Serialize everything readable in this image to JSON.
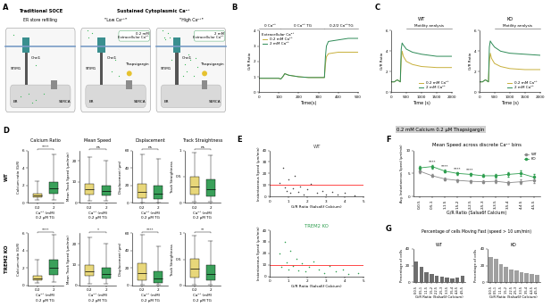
{
  "panel_letters": [
    "A",
    "B",
    "C",
    "D",
    "E",
    "F",
    "G"
  ],
  "diagram": {
    "group_title": "Sustained Cytoplasmic Ca²⁺",
    "labels": {
      "orai": "Orai1",
      "stim": "STIM1",
      "serca": "SERCA",
      "er": "ER"
    },
    "boxes": [
      {
        "title": "Traditional SOCE",
        "subtitle": "ER store refilling"
      },
      {
        "subtitle": "\"Low Ca²⁺\"",
        "extracellular": "0.2 mM\nExtracellular Ca²⁺",
        "drug": "Thapsigargin"
      },
      {
        "subtitle": "\"High Ca²⁺\"",
        "extracellular": "2 mM\nExtracellular Ca²⁺",
        "drug": "Thapsigargin"
      }
    ]
  },
  "header": "0.2 mM Calcium 0.2 µM Thapsigargin",
  "row_labels": [
    "WT",
    "TREM2 KO"
  ],
  "group_title_G": "Percentage of cells Moving Fast (speed > 10 um/min)",
  "chart_data": [
    {
      "type": "line",
      "xlabel": "Time(s)",
      "ylabel": "G/R Ratio",
      "x": [
        0,
        50,
        100,
        110,
        120,
        130,
        140,
        150,
        200,
        250,
        300,
        330,
        335,
        340,
        350,
        400,
        450,
        500
      ],
      "xlim": [
        0,
        500
      ],
      "xticks": [
        0,
        100,
        200,
        300,
        400,
        500
      ],
      "ylim": [
        0,
        4
      ],
      "yticks": [
        0,
        1,
        2,
        3,
        4
      ],
      "phases": [
        {
          "label": "0 Ca²⁺",
          "start": 0,
          "end": 110
        },
        {
          "label": "0 Ca²⁺ TG",
          "start": 110,
          "end": 330
        },
        {
          "label": "0.2/2 Ca²⁺TG",
          "start": 330,
          "end": 500
        }
      ],
      "legend": "upper left",
      "legend_title": "Extracellular Ca²⁺",
      "series": [
        {
          "name": "0.2 mM Ca²⁺",
          "color": "#c8b03c",
          "values": [
            0.9,
            0.9,
            0.9,
            0.85,
            1.0,
            1.2,
            1.15,
            1.1,
            1.0,
            0.95,
            0.95,
            0.95,
            1.8,
            2.3,
            2.5,
            2.6,
            2.6,
            2.6
          ]
        },
        {
          "name": "2 mM Ca²⁺",
          "color": "#2e8b57",
          "values": [
            0.9,
            0.9,
            0.9,
            0.85,
            1.0,
            1.2,
            1.15,
            1.1,
            1.0,
            0.95,
            0.95,
            0.95,
            2.3,
            3.0,
            3.3,
            3.4,
            3.5,
            3.5
          ]
        }
      ]
    },
    {
      "type": "line",
      "title": "WT",
      "xlabel": "Time (s)",
      "ylabel": "G/R Ratio",
      "x": [
        0,
        100,
        200,
        300,
        330,
        360,
        400,
        500,
        700,
        1000,
        1500,
        2000
      ],
      "xlim": [
        0,
        2000
      ],
      "xticks": [
        0,
        500,
        1000,
        1500,
        2000
      ],
      "ylim": [
        0,
        6
      ],
      "yticks": [
        0,
        2,
        4,
        6
      ],
      "phases": [
        {
          "label": "Motility analysis",
          "start": 500,
          "end": 2000
        }
      ],
      "legend": "lower right",
      "series": [
        {
          "name": "0.2 mM Ca²⁺",
          "color": "#c8b03c",
          "values": [
            1.0,
            1.0,
            1.2,
            1.0,
            3.2,
            4.0,
            3.5,
            3.0,
            2.7,
            2.5,
            2.4,
            2.4
          ]
        },
        {
          "name": "2 mM Ca²⁺",
          "color": "#2e8b57",
          "values": [
            1.0,
            1.0,
            1.2,
            1.0,
            4.2,
            4.8,
            4.6,
            4.2,
            3.9,
            3.7,
            3.5,
            3.5
          ]
        }
      ]
    },
    {
      "type": "line",
      "title": "KO",
      "xlabel": "Time (s)",
      "ylabel": "G/R Ratio",
      "x": [
        0,
        100,
        200,
        300,
        330,
        360,
        400,
        500,
        700,
        1000,
        1500,
        2000
      ],
      "xlim": [
        0,
        2000
      ],
      "xticks": [
        0,
        500,
        1000,
        1500,
        2000
      ],
      "ylim": [
        0,
        6
      ],
      "yticks": [
        0,
        2,
        4,
        6
      ],
      "phases": [
        {
          "label": "Motility analysis",
          "start": 500,
          "end": 2000
        }
      ],
      "legend": "lower right",
      "series": [
        {
          "name": "0.2 mM Ca²⁺",
          "color": "#c8b03c",
          "values": [
            1.0,
            1.0,
            1.2,
            1.0,
            3.0,
            3.8,
            3.3,
            2.8,
            2.5,
            2.3,
            2.2,
            2.2
          ]
        },
        {
          "name": "2 mM Ca²⁺",
          "color": "#2e8b57",
          "values": [
            1.0,
            1.0,
            1.2,
            1.0,
            4.4,
            5.0,
            4.8,
            4.4,
            4.0,
            3.8,
            3.7,
            3.6
          ]
        }
      ]
    },
    {
      "type": "box",
      "title": "Calcium Ratio",
      "ylabel": "Calcium ratio (G/R)",
      "xlabel": "Ca²⁺ (mM)",
      "annotation": "0.2 µM TG",
      "categories": [
        "0.2",
        "2"
      ],
      "colors": [
        "#e8d77a",
        "#3aa05a"
      ],
      "ylim": [
        0,
        6
      ],
      "yticks": [
        0,
        2,
        4,
        6
      ],
      "significance": "****",
      "stats": [
        {
          "q1": 0.6,
          "median": 0.8,
          "q3": 1.0,
          "min": 0.3,
          "max": 2.5
        },
        {
          "q1": 1.0,
          "median": 1.6,
          "q3": 2.4,
          "min": 0.3,
          "max": 5.5
        }
      ]
    },
    {
      "type": "box",
      "title": "Mean Speed",
      "ylabel": "Mean Track Speed (µm/min)",
      "xlabel": "Ca²⁺ (mM)",
      "annotation": "0.2 µM TG",
      "categories": [
        "0.2",
        "2"
      ],
      "colors": [
        "#e8d77a",
        "#3aa05a"
      ],
      "ylim": [
        0,
        25
      ],
      "yticks": [
        0,
        10,
        20
      ],
      "significance": "ns",
      "stats": [
        {
          "q1": 4,
          "median": 6.5,
          "q3": 9,
          "min": 1,
          "max": 22
        },
        {
          "q1": 3.5,
          "median": 5.5,
          "q3": 8,
          "min": 1,
          "max": 20
        }
      ]
    },
    {
      "type": "box",
      "title": "Displacement",
      "ylabel": "Displacement (µm)",
      "xlabel": "Ca²⁺ (mM)",
      "annotation": "0.2 µM TG",
      "categories": [
        "0.2",
        "2"
      ],
      "colors": [
        "#e8d77a",
        "#3aa05a"
      ],
      "ylim": [
        0,
        60
      ],
      "yticks": [
        0,
        20,
        40,
        60
      ],
      "significance": "ns",
      "stats": [
        {
          "q1": 5,
          "median": 12,
          "q3": 22,
          "min": 0.5,
          "max": 55
        },
        {
          "q1": 4,
          "median": 10,
          "q3": 20,
          "min": 0.5,
          "max": 50
        }
      ]
    },
    {
      "type": "box",
      "title": "Track Straightness",
      "ylabel": "Track Straightness",
      "xlabel": "Ca²⁺ (mM)",
      "annotation": "0.2 µM TG",
      "categories": [
        "0.2",
        "2"
      ],
      "colors": [
        "#e8d77a",
        "#3aa05a"
      ],
      "ylim": [
        0,
        1
      ],
      "yticks": [
        0,
        0.5,
        1
      ],
      "significance": "ns",
      "stats": [
        {
          "q1": 0.15,
          "median": 0.3,
          "q3": 0.5,
          "min": 0.02,
          "max": 0.95
        },
        {
          "q1": 0.12,
          "median": 0.25,
          "q3": 0.45,
          "min": 0.02,
          "max": 0.9
        }
      ]
    },
    {
      "type": "box",
      "ylabel": "Calcium ratio (G/R)",
      "xlabel": "Ca²⁺ (mM)",
      "annotation": "0.2 µM TG",
      "categories": [
        "0.2",
        "2"
      ],
      "colors": [
        "#e8d77a",
        "#3aa05a"
      ],
      "ylim": [
        0,
        6
      ],
      "yticks": [
        0,
        2,
        4,
        6
      ],
      "significance": "****",
      "stats": [
        {
          "q1": 0.6,
          "median": 0.8,
          "q3": 1.1,
          "min": 0.3,
          "max": 3.0
        },
        {
          "q1": 1.2,
          "median": 2.0,
          "q3": 3.0,
          "min": 0.4,
          "max": 5.8
        }
      ]
    },
    {
      "type": "box",
      "ylabel": "Mean Track Speed (µm/min)",
      "xlabel": "Ca²⁺ (mM)",
      "annotation": "0.2 µM TG",
      "categories": [
        "0.2",
        "2"
      ],
      "colors": [
        "#e8d77a",
        "#3aa05a"
      ],
      "ylim": [
        0,
        25
      ],
      "yticks": [
        0,
        10,
        20
      ],
      "significance": "*",
      "stats": [
        {
          "q1": 4.5,
          "median": 7,
          "q3": 10,
          "min": 1,
          "max": 23
        },
        {
          "q1": 3.5,
          "median": 5.5,
          "q3": 8.5,
          "min": 1,
          "max": 20
        }
      ]
    },
    {
      "type": "box",
      "ylabel": "Displacement (µm)",
      "xlabel": "Ca²⁺ (mM)",
      "annotation": "0.2 µM TG",
      "categories": [
        "0.2",
        "2"
      ],
      "colors": [
        "#e8d77a",
        "#3aa05a"
      ],
      "ylim": [
        0,
        60
      ],
      "yticks": [
        0,
        20,
        40,
        60
      ],
      "significance": "****",
      "stats": [
        {
          "q1": 6,
          "median": 14,
          "q3": 26,
          "min": 0.5,
          "max": 58
        },
        {
          "q1": 3,
          "median": 8,
          "q3": 16,
          "min": 0.5,
          "max": 45
        }
      ]
    },
    {
      "type": "box",
      "ylabel": "Track Straightness",
      "xlabel": "Ca²⁺ (mM)",
      "annotation": "0.2 µM TG",
      "categories": [
        "0.2",
        "2"
      ],
      "colors": [
        "#e8d77a",
        "#3aa05a"
      ],
      "ylim": [
        0,
        1
      ],
      "yticks": [
        0,
        0.5,
        1
      ],
      "significance": "**",
      "stats": [
        {
          "q1": 0.15,
          "median": 0.32,
          "q3": 0.52,
          "min": 0.02,
          "max": 0.95
        },
        {
          "q1": 0.1,
          "median": 0.22,
          "q3": 0.4,
          "min": 0.02,
          "max": 0.85
        }
      ]
    },
    {
      "type": "scatter",
      "title": "WT",
      "xlabel": "G/R Ratio (Salsa6f Calcium)",
      "ylabel": "Instantaneous Speed (µm/min)",
      "color": "#444444",
      "threshold": 10,
      "xlim": [
        0,
        5
      ],
      "xticks": [
        0,
        1,
        2,
        3,
        4,
        5
      ],
      "ylim": [
        0,
        40
      ],
      "yticks": [
        0,
        10,
        20,
        30,
        40
      ],
      "x": [
        0.5,
        0.7,
        0.8,
        0.9,
        1.0,
        1.1,
        1.2,
        1.3,
        1.5,
        1.6,
        1.8,
        2.0,
        2.2,
        2.5,
        2.8,
        3.0,
        3.3,
        3.6,
        4.0,
        4.5
      ],
      "values": [
        12,
        25,
        8,
        5,
        15,
        3,
        7,
        18,
        4,
        9,
        2,
        6,
        11,
        3,
        5,
        2,
        4,
        1.5,
        3,
        1
      ]
    },
    {
      "type": "scatter",
      "title": "TREM2 KO",
      "xlabel": "G/R Ratio (Salsa6f Calcium)",
      "ylabel": "Instantaneous Speed (µm/min)",
      "color": "#2e9e4f",
      "threshold": 10,
      "xlim": [
        0,
        5
      ],
      "xticks": [
        0,
        1,
        2,
        3,
        4,
        5
      ],
      "ylim": [
        0,
        40
      ],
      "yticks": [
        0,
        10,
        20,
        30,
        40
      ],
      "x": [
        0.5,
        0.6,
        0.8,
        0.9,
        1.0,
        1.1,
        1.2,
        1.4,
        1.5,
        1.7,
        1.9,
        2.1,
        2.3,
        2.6,
        2.9,
        3.2,
        3.5,
        3.9,
        4.2,
        4.7
      ],
      "values": [
        20,
        8,
        30,
        12,
        6,
        22,
        9,
        15,
        5,
        11,
        4,
        8,
        13,
        6,
        3,
        9,
        4,
        6,
        2,
        3
      ]
    },
    {
      "type": "line",
      "title": "Mean Speed across discrete Ca²⁺ bins",
      "xlabel": "G/R Ratio (Salsa6f Calcium)",
      "ylabel": "Avg. Instantaneous Speed (µm/min)",
      "categories": [
        "0-0.5",
        "0.5-1",
        "1-1.5",
        "1.5-2",
        "2-2.5",
        "2.5-3",
        "3-3.5",
        "3.5-4",
        "4-4.5",
        "4.5-5"
      ],
      "ylim": [
        0,
        10
      ],
      "yticks": [
        0,
        5,
        10
      ],
      "legend": "upper right",
      "marker": "o",
      "significance": [
        {
          "category": "0.5-1",
          "label": "****"
        },
        {
          "category": "1-1.5",
          "label": "****"
        },
        {
          "category": "1.5-2",
          "label": "****"
        },
        {
          "category": "2-2.5",
          "label": "****"
        }
      ],
      "series": [
        {
          "name": "WT",
          "color": "#8a8a8a",
          "values": [
            5.5,
            4.5,
            3.8,
            3.5,
            3.3,
            3.2,
            3.3,
            3.0,
            3.2,
            3.5
          ],
          "errors": [
            0.4,
            0.3,
            0.3,
            0.3,
            0.3,
            0.3,
            0.4,
            0.4,
            0.5,
            0.6
          ]
        },
        {
          "name": "KO",
          "color": "#2e9e4f",
          "values": [
            6.2,
            6.5,
            5.5,
            5.0,
            4.8,
            4.5,
            4.5,
            4.8,
            5.0,
            4.2
          ],
          "errors": [
            0.4,
            0.4,
            0.3,
            0.3,
            0.3,
            0.3,
            0.4,
            0.5,
            0.6,
            0.7
          ]
        }
      ]
    },
    {
      "type": "bar",
      "title": "WT",
      "xlabel": "G/R Ratio (Salsa6f Calcium)",
      "ylabel": "Percentage of cells",
      "categories": [
        "0-0.5",
        "0.5-1",
        "1-1.5",
        "1.5-2",
        "2-2.5",
        "2.5-3",
        "3-3.5",
        "3.5-4",
        "4-4.5",
        "4.5-5"
      ],
      "values": [
        25,
        18,
        12,
        10,
        8,
        7,
        6,
        5,
        6,
        8
      ],
      "color": "#6e6e6e",
      "ylim": [
        0,
        40
      ],
      "yticks": [
        0,
        20,
        40
      ]
    },
    {
      "type": "bar",
      "title": "KO",
      "xlabel": "G/R Ratio (Salsa6f Calcium)",
      "ylabel": "Percentage of cells",
      "categories": [
        "0-0.5",
        "0.5-1",
        "1-1.5",
        "1.5-2",
        "2-2.5",
        "2.5-3",
        "3-3.5",
        "3.5-4",
        "4-4.5",
        "4.5-5"
      ],
      "values": [
        30,
        28,
        22,
        18,
        15,
        14,
        12,
        11,
        10,
        9
      ],
      "color": "#a0a0a0",
      "ylim": [
        0,
        40
      ],
      "yticks": [
        0,
        20,
        40
      ]
    }
  ]
}
